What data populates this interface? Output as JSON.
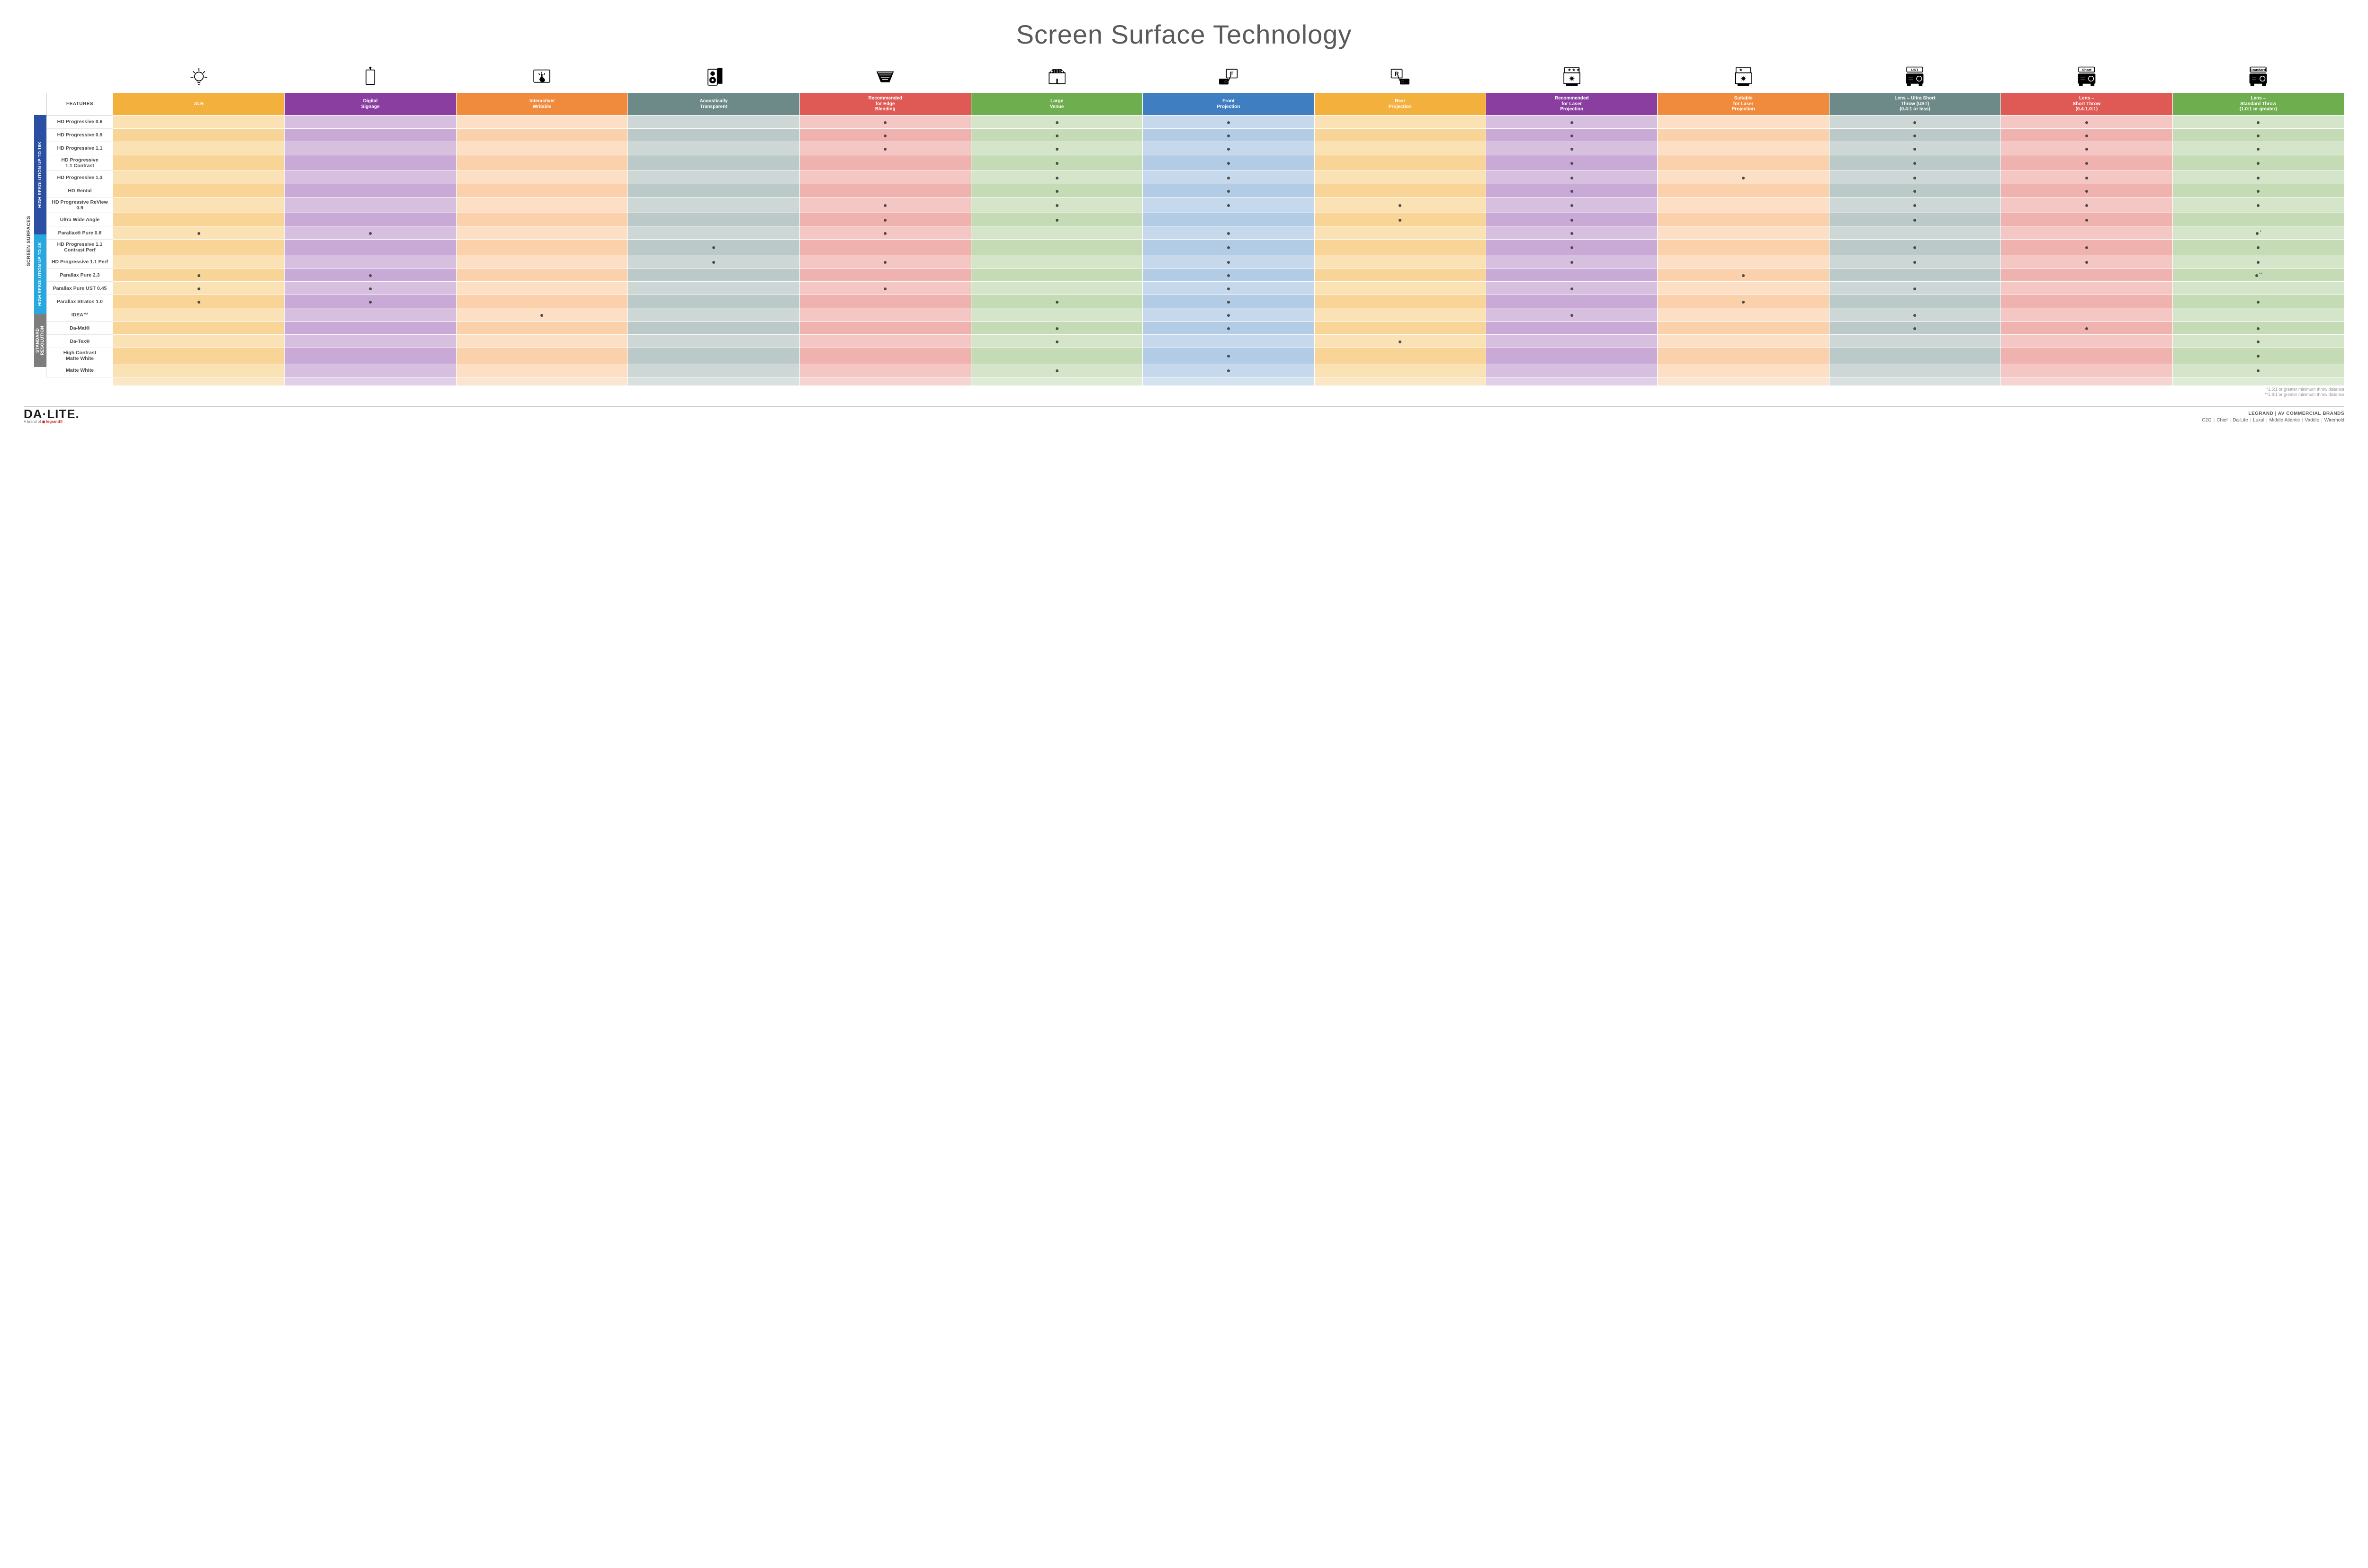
{
  "title": "Screen Surface Technology",
  "side_label_outer": "SCREEN SURFACES",
  "groups": [
    {
      "label": "HIGH RESOLUTION UP TO 16K",
      "bg": "#2b4fa2",
      "rows": 9
    },
    {
      "label": "HIGH RESOLUTION UP TO 4K",
      "bg": "#29a7df",
      "rows": 6
    },
    {
      "label": "STANDARD\nRESOLUTION",
      "bg": "#7d7d7d",
      "rows": 4
    }
  ],
  "columns": [
    {
      "key": "alr",
      "label": "ALR",
      "bg_head": "#f3b03c",
      "tints": [
        "#fbe2b4",
        "#f8d596"
      ],
      "icon": "bulb"
    },
    {
      "key": "signage",
      "label": "Digital\nSignage",
      "bg_head": "#8a3fa0",
      "tints": [
        "#d7bfe0",
        "#c9a9d6"
      ],
      "icon": "signage"
    },
    {
      "key": "interactive",
      "label": "Interactive/\nWritable",
      "bg_head": "#f08a3c",
      "tints": [
        "#fcdfc4",
        "#fad1ab"
      ],
      "icon": "touch"
    },
    {
      "key": "acoustic",
      "label": "Acoustically\nTransparent",
      "bg_head": "#6e8a88",
      "tints": [
        "#cdd8d6",
        "#bbcac8"
      ],
      "icon": "speaker"
    },
    {
      "key": "edge",
      "label": "Recommended\nfor Edge\nBlending",
      "bg_head": "#e05a55",
      "tints": [
        "#f4c6c4",
        "#f0b2af"
      ],
      "icon": "blend"
    },
    {
      "key": "venue",
      "label": "Large\nVenue",
      "bg_head": "#6fae4f",
      "tints": [
        "#d4e5c9",
        "#c4dbb5"
      ],
      "icon": "venue"
    },
    {
      "key": "front",
      "label": "Front\nProjection",
      "bg_head": "#3e7ec1",
      "tints": [
        "#c6d9ec",
        "#b3cce5"
      ],
      "icon": "front"
    },
    {
      "key": "rear",
      "label": "Rear\nProjection",
      "bg_head": "#f3b03c",
      "tints": [
        "#fbe2b4",
        "#f8d596"
      ],
      "icon": "rear"
    },
    {
      "key": "laser_rec",
      "label": "Recommended\nfor Laser\nProjection",
      "bg_head": "#8a3fa0",
      "tints": [
        "#d7bfe0",
        "#c9a9d6"
      ],
      "icon": "laser3"
    },
    {
      "key": "laser_suit",
      "label": "Suitable\nfor Laser\nProjection",
      "bg_head": "#f08a3c",
      "tints": [
        "#fcdfc4",
        "#fad1ab"
      ],
      "icon": "laser1"
    },
    {
      "key": "ust",
      "label": "Lens – Ultra Short\nThrow (UST)\n(0.4:1 or less)",
      "bg_head": "#6e8a88",
      "tints": [
        "#cdd8d6",
        "#bbcac8"
      ],
      "icon": "proj_ust"
    },
    {
      "key": "short",
      "label": "Lens –\nShort Throw\n(0.4-1.0:1)",
      "bg_head": "#e05a55",
      "tints": [
        "#f4c6c4",
        "#f0b2af"
      ],
      "icon": "proj_short"
    },
    {
      "key": "std",
      "label": "Lens –\nStandard Throw\n(1.0:1 or greater)",
      "bg_head": "#6fae4f",
      "tints": [
        "#d4e5c9",
        "#c4dbb5"
      ],
      "icon": "proj_std"
    }
  ],
  "rows": [
    {
      "label": "HD Progressive 0.6",
      "dots": {
        "edge": "•",
        "venue": "•",
        "front": "•",
        "laser_rec": "•",
        "ust": "•",
        "short": "•",
        "std": "•"
      }
    },
    {
      "label": "HD Progressive 0.9",
      "dots": {
        "edge": "•",
        "venue": "•",
        "front": "•",
        "laser_rec": "•",
        "ust": "•",
        "short": "•",
        "std": "•"
      }
    },
    {
      "label": "HD Progressive 1.1",
      "dots": {
        "edge": "•",
        "venue": "•",
        "front": "•",
        "laser_rec": "•",
        "ust": "•",
        "short": "•",
        "std": "•"
      }
    },
    {
      "label": "HD Progressive\n1.1 Contrast",
      "dots": {
        "venue": "•",
        "front": "•",
        "laser_rec": "•",
        "ust": "•",
        "short": "•",
        "std": "•"
      }
    },
    {
      "label": "HD Progressive 1.3",
      "dots": {
        "venue": "•",
        "front": "•",
        "laser_rec": "•",
        "laser_suit": "•",
        "ust": "•",
        "short": "•",
        "std": "•"
      }
    },
    {
      "label": "HD Rental",
      "dots": {
        "venue": "•",
        "front": "•",
        "laser_rec": "•",
        "ust": "•",
        "short": "•",
        "std": "•"
      }
    },
    {
      "label": "HD Progressive ReView 0.9",
      "dots": {
        "edge": "•",
        "venue": "•",
        "front": "•",
        "rear": "•",
        "laser_rec": "•",
        "ust": "•",
        "short": "•",
        "std": "•"
      }
    },
    {
      "label": "Ultra Wide Angle",
      "dots": {
        "edge": "•",
        "venue": "•",
        "rear": "•",
        "laser_rec": "•",
        "ust": "•",
        "short": "•"
      }
    },
    {
      "label": "Parallax® Pure 0.8",
      "dots": {
        "alr": "•",
        "signage": "•",
        "edge": "•",
        "front": "•",
        "laser_rec": "•",
        "std": "•*"
      }
    },
    {
      "label": "HD Progressive 1.1\nContrast Perf",
      "dots": {
        "acoustic": "•",
        "front": "•",
        "laser_rec": "•",
        "ust": "•",
        "short": "•",
        "std": "•"
      }
    },
    {
      "label": "HD Progressive 1.1 Perf",
      "dots": {
        "acoustic": "•",
        "edge": "•",
        "front": "•",
        "laser_rec": "•",
        "ust": "•",
        "short": "•",
        "std": "•"
      }
    },
    {
      "label": "Parallax Pure 2.3",
      "dots": {
        "alr": "•",
        "signage": "•",
        "front": "•",
        "laser_suit": "•",
        "std": "•**"
      }
    },
    {
      "label": "Parallax Pure UST 0.45",
      "dots": {
        "alr": "•",
        "signage": "•",
        "edge": "•",
        "front": "•",
        "laser_rec": "•",
        "ust": "•"
      }
    },
    {
      "label": "Parallax Stratos 1.0",
      "dots": {
        "alr": "•",
        "signage": "•",
        "venue": "•",
        "front": "•",
        "laser_suit": "•",
        "std": "•"
      }
    },
    {
      "label": "IDEA™",
      "dots": {
        "interactive": "•",
        "front": "•",
        "laser_rec": "•",
        "ust": "•"
      }
    },
    {
      "label": "Da-Mat®",
      "dots": {
        "venue": "•",
        "front": "•",
        "ust": "•",
        "short": "•",
        "std": "•"
      }
    },
    {
      "label": "Da-Tex®",
      "dots": {
        "venue": "•",
        "rear": "•",
        "std": "•"
      }
    },
    {
      "label": "High Contrast\nMatte White",
      "dots": {
        "front": "•",
        "std": "•"
      }
    },
    {
      "label": "Matte White",
      "dots": {
        "venue": "•",
        "front": "•",
        "std": "•"
      }
    }
  ],
  "features_header": "FEATURES",
  "footnotes": [
    "*1.5:1 or greater minimum throw distance",
    "**1.8:1 or greater minimum throw distance"
  ],
  "footer": {
    "logo_main": "DA·LITE.",
    "logo_sub_prefix": "A brand of ",
    "logo_sub_brand": "legrand",
    "brand_heading": "LEGRAND | AV COMMERCIAL BRANDS",
    "brands": [
      "C2G",
      "Chief",
      "Da-Lite",
      "Luxul",
      "Middle Atlantic",
      "Vaddio",
      "Wiremold"
    ]
  },
  "icon_labels": {
    "proj_ust": "UST",
    "proj_short": "Short",
    "proj_std": "Standard"
  }
}
